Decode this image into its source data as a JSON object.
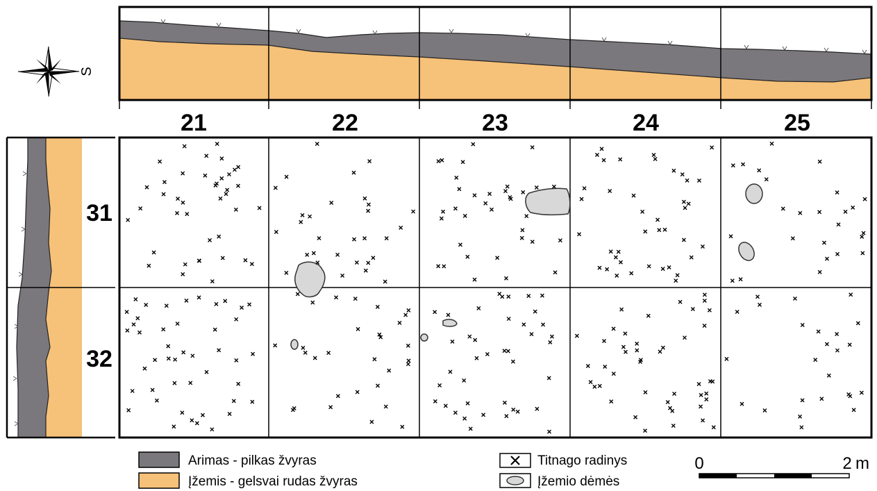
{
  "compass": {
    "label": "S",
    "icon": "compass-rose-icon"
  },
  "columns": [
    "21",
    "22",
    "23",
    "24",
    "25"
  ],
  "rows": [
    "31",
    "32"
  ],
  "legend": {
    "topsoil": {
      "label": "Arimas - pilkas žvyras",
      "color": "#7a787d"
    },
    "subsoil": {
      "label": "Įžemis - gelsvai rudas žvyras",
      "color": "#f6c178"
    },
    "flint": {
      "label": "Titnago radinys",
      "icon": "cross-mark-icon"
    },
    "spots": {
      "label": "Įžemio dėmės",
      "color": "#d8d8d8"
    }
  },
  "scale": {
    "start": "0",
    "end": "2",
    "unit": "m"
  }
}
